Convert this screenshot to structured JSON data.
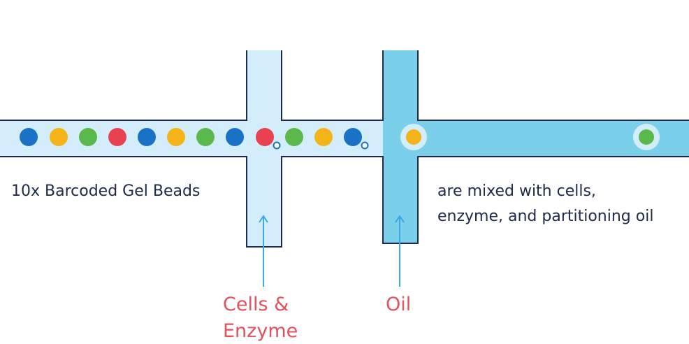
{
  "labels": {
    "beads": "10x Barcoded Gel Beads",
    "mixed_line1": "are mixed with cells,",
    "mixed_line2": "enzyme, and partitioning oil",
    "cells_line1": "Cells &",
    "cells_line2": "Enzyme",
    "oil": "Oil"
  },
  "beads": [
    {
      "color": "blue"
    },
    {
      "color": "yellow"
    },
    {
      "color": "green"
    },
    {
      "color": "red"
    },
    {
      "color": "blue"
    },
    {
      "color": "yellow"
    },
    {
      "color": "green"
    },
    {
      "color": "blue"
    },
    {
      "color": "red"
    },
    {
      "color": "green"
    },
    {
      "color": "yellow"
    },
    {
      "color": "blue"
    }
  ],
  "droplets": [
    {
      "color": "yellow"
    },
    {
      "color": "green"
    }
  ],
  "colors": {
    "bead_blue": "#1a72c6",
    "bead_yellow": "#f2b418",
    "bead_green": "#5bb84a",
    "bead_red": "#e8414f",
    "channel_light": "#d3eefa",
    "channel_oil": "#7ad0ea",
    "channel_border": "#1f2a4a",
    "arrow": "#3aa7e6",
    "label_dark": "#1f2a4a",
    "label_red": "#e2515e"
  }
}
